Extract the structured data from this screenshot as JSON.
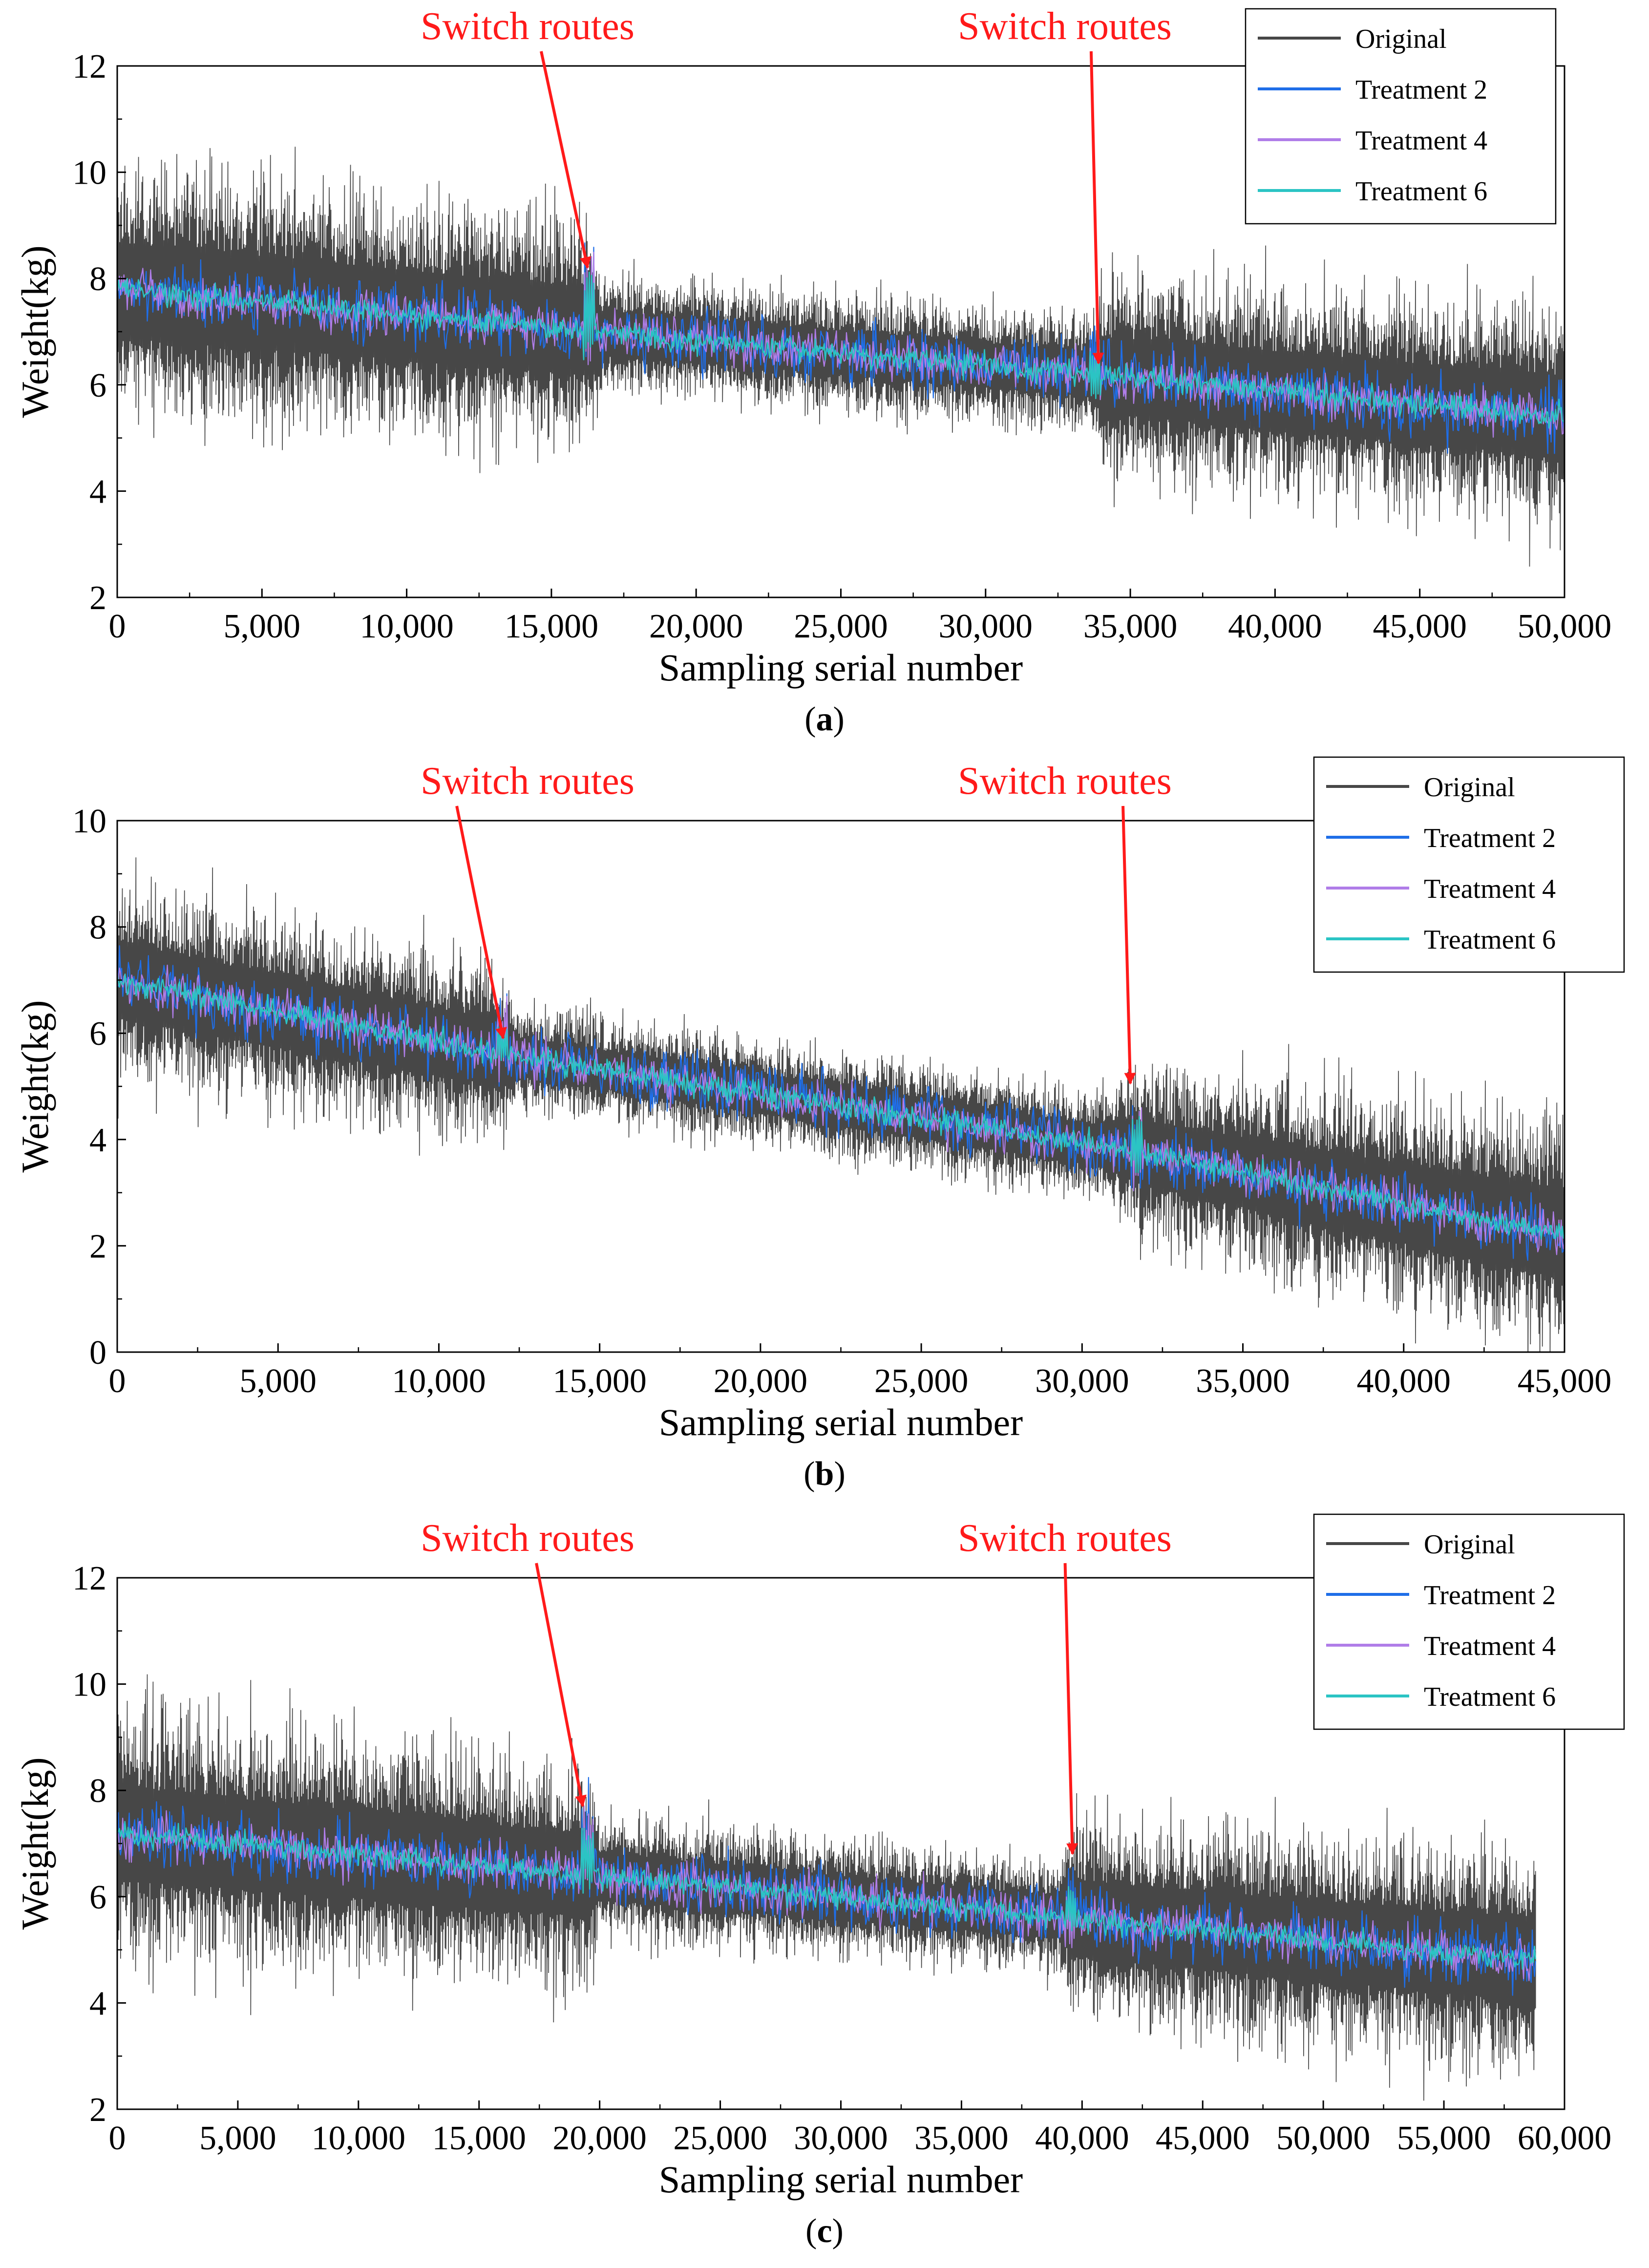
{
  "figure": {
    "panels": [
      "a",
      "b",
      "c"
    ]
  },
  "chart_data": [
    {
      "id": "a",
      "type": "line",
      "caption": "(a)",
      "caption_prefix": "(",
      "caption_letter": "a",
      "caption_suffix": ")",
      "xlabel": "Sampling serial number",
      "ylabel": "Weight(kg)",
      "xlim": [
        0,
        50000
      ],
      "ylim": [
        2,
        12
      ],
      "xticks": [
        0,
        5000,
        10000,
        15000,
        20000,
        25000,
        30000,
        35000,
        40000,
        45000,
        50000
      ],
      "xtick_labels": [
        "0",
        "5,000",
        "10,000",
        "15,000",
        "20,000",
        "25,000",
        "30,000",
        "35,000",
        "40,000",
        "45,000",
        "50,000"
      ],
      "yticks": [
        2,
        4,
        6,
        8,
        10,
        12
      ],
      "ytick_labels": [
        "2",
        "4",
        "6",
        "8",
        "10",
        "12"
      ],
      "legend_position": "top-right",
      "legend": [
        "Original",
        "Treatment 2",
        "Treatment 4",
        "Treatment 6"
      ],
      "data_end": 50000,
      "trend": [
        [
          0,
          7.8
        ],
        [
          16300,
          7.0
        ],
        [
          33800,
          6.2
        ],
        [
          50000,
          5.4
        ]
      ],
      "original_spread": [
        [
          0,
          1.6
        ],
        [
          16300,
          1.5
        ],
        [
          16700,
          0.75
        ],
        [
          33600,
          0.75
        ],
        [
          34200,
          1.3
        ],
        [
          50000,
          1.4
        ]
      ],
      "spikes": [
        {
          "x": 16300,
          "high": 8.4,
          "low": 6.6
        },
        {
          "x": 33800,
          "high": 6.7,
          "low": 5.9
        }
      ],
      "annotations": [
        {
          "text": "Switch routes",
          "x": 16250,
          "y": 8.15
        },
        {
          "text": "Switch routes",
          "x": 33900,
          "y": 6.35
        }
      ],
      "series": [
        {
          "name": "Original",
          "color": "#474747"
        },
        {
          "name": "Treatment 2",
          "color": "#1f6ee8"
        },
        {
          "name": "Treatment 4",
          "color": "#b07de8"
        },
        {
          "name": "Treatment 6",
          "color": "#2bc4c4"
        }
      ]
    },
    {
      "id": "b",
      "type": "line",
      "caption": "(b)",
      "caption_prefix": "(",
      "caption_letter": "b",
      "caption_suffix": ")",
      "xlabel": "Sampling serial number",
      "ylabel": "Weight(kg)",
      "xlim": [
        0,
        45000
      ],
      "ylim": [
        0,
        10
      ],
      "xticks": [
        0,
        5000,
        10000,
        15000,
        20000,
        25000,
        30000,
        35000,
        40000,
        45000
      ],
      "xtick_labels": [
        "0",
        "5,000",
        "10,000",
        "15,000",
        "20,000",
        "25,000",
        "30,000",
        "35,000",
        "40,000",
        "45,000"
      ],
      "yticks": [
        0,
        2,
        4,
        6,
        8,
        10
      ],
      "ytick_labels": [
        "0",
        "2",
        "4",
        "6",
        "8",
        "10"
      ],
      "legend_position": "top-right",
      "legend": [
        "Original",
        "Treatment 2",
        "Treatment 4",
        "Treatment 6"
      ],
      "data_end": 45000,
      "trend": [
        [
          0,
          7.0
        ],
        [
          12000,
          5.6
        ],
        [
          31500,
          3.8
        ],
        [
          45000,
          2.2
        ]
      ],
      "original_spread": [
        [
          0,
          1.3
        ],
        [
          12000,
          1.1
        ],
        [
          12500,
          0.65
        ],
        [
          30500,
          0.7
        ],
        [
          31800,
          1.1
        ],
        [
          45000,
          1.5
        ]
      ],
      "spikes": [
        {
          "x": 12000,
          "high": 6.3,
          "low": 5.4
        },
        {
          "x": 31700,
          "high": 4.5,
          "low": 3.3
        }
      ],
      "annotations": [
        {
          "text": "Switch routes",
          "x": 12000,
          "y": 5.85
        },
        {
          "text": "Switch routes",
          "x": 31500,
          "y": 5.0
        }
      ],
      "series": [
        {
          "name": "Original",
          "color": "#474747"
        },
        {
          "name": "Treatment 2",
          "color": "#1f6ee8"
        },
        {
          "name": "Treatment 4",
          "color": "#b07de8"
        },
        {
          "name": "Treatment 6",
          "color": "#2bc4c4"
        }
      ]
    },
    {
      "id": "c",
      "type": "line",
      "caption": "(c)",
      "caption_prefix": "(",
      "caption_letter": "c",
      "caption_suffix": ")",
      "xlabel": "Sampling serial number",
      "ylabel": "Weight(kg)",
      "xlim": [
        0,
        60000
      ],
      "ylim": [
        2,
        12
      ],
      "xticks": [
        0,
        5000,
        10000,
        15000,
        20000,
        25000,
        30000,
        35000,
        40000,
        45000,
        50000,
        55000,
        60000
      ],
      "xtick_labels": [
        "0",
        "5,000",
        "10,000",
        "15,000",
        "20,000",
        "25,000",
        "30,000",
        "35,000",
        "40,000",
        "45,000",
        "50,000",
        "55,000",
        "60,000"
      ],
      "yticks": [
        2,
        4,
        6,
        8,
        10,
        12
      ],
      "ytick_labels": [
        "2",
        "4",
        "6",
        "8",
        "10",
        "12"
      ],
      "legend_position": "top-right",
      "legend": [
        "Original",
        "Treatment 2",
        "Treatment 4",
        "Treatment 6"
      ],
      "data_end": 58800,
      "trend": [
        [
          0,
          7.2
        ],
        [
          19500,
          6.4
        ],
        [
          39500,
          5.6
        ],
        [
          58800,
          4.8
        ]
      ],
      "original_spread": [
        [
          0,
          1.6
        ],
        [
          19500,
          1.4
        ],
        [
          20000,
          0.8
        ],
        [
          39000,
          0.7
        ],
        [
          39700,
          1.3
        ],
        [
          58800,
          1.4
        ]
      ],
      "spikes": [
        {
          "x": 19500,
          "high": 7.5,
          "low": 6.2
        },
        {
          "x": 39500,
          "high": 6.3,
          "low": 5.3
        }
      ],
      "annotations": [
        {
          "text": "Switch routes",
          "x": 19300,
          "y": 7.65
        },
        {
          "text": "Switch routes",
          "x": 39600,
          "y": 6.75
        }
      ],
      "series": [
        {
          "name": "Original",
          "color": "#474747"
        },
        {
          "name": "Treatment 2",
          "color": "#1f6ee8"
        },
        {
          "name": "Treatment 4",
          "color": "#b07de8"
        },
        {
          "name": "Treatment 6",
          "color": "#2bc4c4"
        }
      ]
    }
  ]
}
